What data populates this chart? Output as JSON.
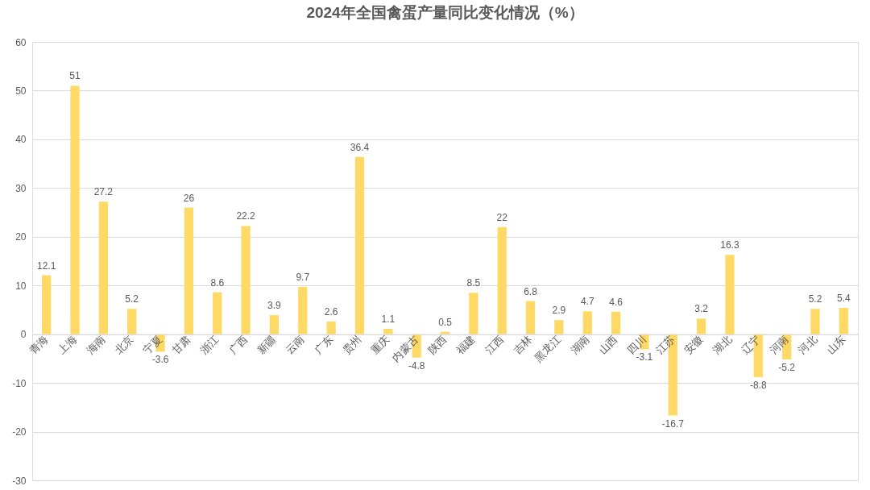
{
  "chart_data": {
    "type": "bar",
    "title": "2024年全国禽蛋产量同比变化情况（%）",
    "categories": [
      "青海",
      "上海",
      "海南",
      "北京",
      "宁夏",
      "甘肃",
      "浙江",
      "广西",
      "新疆",
      "云南",
      "广东",
      "贵州",
      "重庆",
      "内蒙古",
      "陕西",
      "福建",
      "江西",
      "吉林",
      "黑龙江",
      "湖南",
      "山西",
      "四川",
      "江苏",
      "安徽",
      "湖北",
      "辽宁",
      "河南",
      "河北",
      "山东"
    ],
    "values": [
      12.1,
      51,
      27.2,
      5.2,
      -3.6,
      26,
      8.6,
      22.2,
      3.9,
      9.7,
      2.6,
      36.4,
      1.1,
      -4.8,
      0.5,
      8.5,
      22,
      6.8,
      2.9,
      4.7,
      4.6,
      -3.1,
      -16.7,
      3.2,
      16.3,
      -8.8,
      -5.2,
      5.2,
      5.4
    ],
    "color": "#ffd966",
    "ylim": [
      -30,
      60
    ],
    "yticks": [
      -30,
      -20,
      -10,
      0,
      10,
      20,
      30,
      40,
      50,
      60
    ],
    "grid": "y",
    "data_labels": true
  }
}
